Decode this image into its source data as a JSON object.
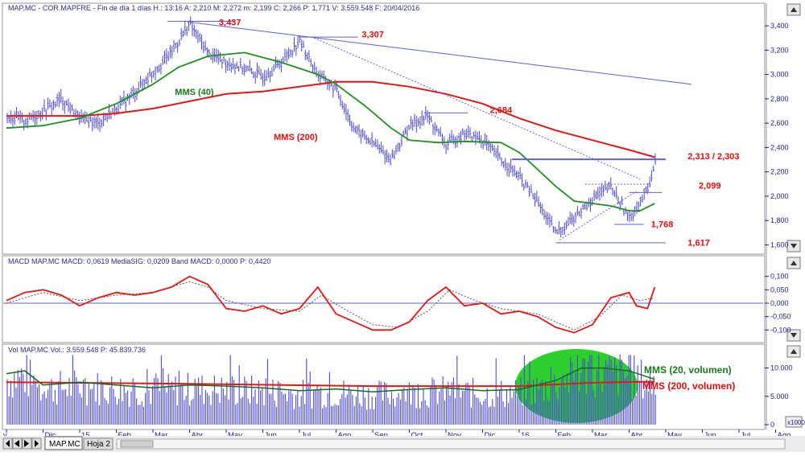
{
  "header": {
    "price": "MAP.MC - COR.MAPFRE - Fin de día 1 días H.: 13:16 A: 2,210 M: 2,272 m: 2,199 C: 2,266 P: 1,771 V: 3.559.548 F: 20/04/2016",
    "macd": "MACD  MAP.MC MACD: 0,0619 MediaSIG: 0,0209 Band  MACD: 0,0000  P: 0,4420",
    "vol": "Vol  MAP.MC Vol.: 3.559.548  P: 45.839.736"
  },
  "colors": {
    "price": "#4b4bd8",
    "mms40": "#1f8f1f",
    "mms200": "#e01818",
    "trend": "#6060e0",
    "axis": "#20208a",
    "highlight": "#22cc22"
  },
  "chart_data": [
    {
      "type": "line",
      "panel": "price",
      "y_ticks": [
        "3,400",
        "3,200",
        "3,000",
        "2,800",
        "2,600",
        "2,400",
        "2,200",
        "2,000",
        "1,800",
        "1,600"
      ],
      "ylim": [
        1.55,
        3.48
      ],
      "x_labels": [
        "Nov",
        "Dic",
        "15",
        "Feb",
        "Mar",
        "Abr",
        "May",
        "Jun",
        "Jul",
        "Ago",
        "Sep",
        "Oct",
        "Nov",
        "Dic",
        "16",
        "Feb",
        "Mar",
        "Abr",
        "May",
        "Jun",
        "Jul",
        "Ago"
      ],
      "x_labels_visible": [
        "v",
        "Dic",
        "15",
        "Feb",
        "Mar",
        "Abr",
        "May",
        "Jun",
        "Jul",
        "Ago",
        "Sep",
        "Oct",
        "Nov",
        "Dic",
        "16",
        "Feb",
        "Mar",
        "Abr",
        "May",
        "Jun",
        "Jul",
        "Ago"
      ],
      "price_path": [
        [
          0,
          2.66
        ],
        [
          0.5,
          2.62
        ],
        [
          1,
          2.7
        ],
        [
          1.5,
          2.8
        ],
        [
          2,
          2.64
        ],
        [
          2.5,
          2.6
        ],
        [
          3,
          2.72
        ],
        [
          3.5,
          2.85
        ],
        [
          4,
          3.02
        ],
        [
          4.5,
          3.18
        ],
        [
          5,
          3.42
        ],
        [
          5.5,
          3.18
        ],
        [
          6,
          3.1
        ],
        [
          6.5,
          3.05
        ],
        [
          7,
          2.98
        ],
        [
          7.5,
          3.1
        ],
        [
          8,
          3.28
        ],
        [
          8.5,
          3.0
        ],
        [
          9,
          2.88
        ],
        [
          9.5,
          2.55
        ],
        [
          10,
          2.44
        ],
        [
          10.5,
          2.3
        ],
        [
          11,
          2.58
        ],
        [
          11.5,
          2.66
        ],
        [
          12,
          2.42
        ],
        [
          12.5,
          2.52
        ],
        [
          13,
          2.46
        ],
        [
          13.5,
          2.3
        ],
        [
          14,
          2.16
        ],
        [
          14.5,
          1.95
        ],
        [
          15,
          1.7
        ],
        [
          15.5,
          1.82
        ],
        [
          16,
          1.98
        ],
        [
          16.5,
          2.08
        ],
        [
          17,
          1.82
        ],
        [
          17.5,
          2.05
        ],
        [
          17.7,
          2.27
        ]
      ],
      "series": [
        {
          "name": "MMS (40)",
          "points": [
            [
              0,
              2.56
            ],
            [
              1,
              2.58
            ],
            [
              2,
              2.64
            ],
            [
              3,
              2.76
            ],
            [
              4,
              2.92
            ],
            [
              4.7,
              3.06
            ],
            [
              5.5,
              3.15
            ],
            [
              6.5,
              3.18
            ],
            [
              7.5,
              3.1
            ],
            [
              8.5,
              3.0
            ],
            [
              9,
              2.92
            ],
            [
              9.8,
              2.74
            ],
            [
              10.5,
              2.56
            ],
            [
              11,
              2.46
            ],
            [
              11.8,
              2.44
            ],
            [
              12.5,
              2.45
            ],
            [
              13.5,
              2.44
            ],
            [
              14,
              2.36
            ],
            [
              14.5,
              2.22
            ],
            [
              15,
              2.08
            ],
            [
              15.5,
              1.96
            ],
            [
              16,
              1.94
            ],
            [
              16.5,
              1.92
            ],
            [
              17,
              1.88
            ],
            [
              17.3,
              1.88
            ],
            [
              17.7,
              1.94
            ]
          ]
        },
        {
          "name": "MMS (200)",
          "points": [
            [
              0,
              2.66
            ],
            [
              2,
              2.66
            ],
            [
              3,
              2.68
            ],
            [
              4,
              2.72
            ],
            [
              5,
              2.78
            ],
            [
              6,
              2.84
            ],
            [
              7,
              2.86
            ],
            [
              8,
              2.9
            ],
            [
              9,
              2.94
            ],
            [
              10,
              2.94
            ],
            [
              11,
              2.9
            ],
            [
              12,
              2.84
            ],
            [
              13,
              2.76
            ],
            [
              14,
              2.64
            ],
            [
              15,
              2.54
            ],
            [
              16,
              2.46
            ],
            [
              17,
              2.38
            ],
            [
              17.7,
              2.32
            ]
          ]
        }
      ],
      "trendlines": [
        {
          "from": [
            5,
            3.43
          ],
          "to": [
            18.7,
            2.92
          ],
          "style": "solid"
        },
        {
          "from": [
            8.4,
            3.3
          ],
          "to": [
            17.3,
            2.14
          ],
          "style": "dotted"
        },
        {
          "from": [
            15.1,
            1.64
          ],
          "to": [
            17.2,
            2.04
          ],
          "style": "dotted"
        }
      ],
      "levels": [
        {
          "value": 3.437,
          "from": 4.4,
          "to": 6.2
        },
        {
          "value": 3.307,
          "from": 8.0,
          "to": 9.6
        },
        {
          "value": 2.684,
          "from": 11.4,
          "to": 12.6
        },
        {
          "value": 2.303,
          "from": 13.8,
          "to": 18.0
        },
        {
          "value": 2.099,
          "from": 15.8,
          "to": 17.6,
          "style": "dotted"
        },
        {
          "value": 2.03,
          "from": 17.0,
          "to": 17.9
        },
        {
          "value": 1.768,
          "from": 16.6,
          "to": 17.4
        },
        {
          "value": 1.617,
          "from": 15.0,
          "to": 18.0
        }
      ],
      "annotations": [
        {
          "text": "3,437",
          "x": 5.8,
          "y": 3.43,
          "color": "red"
        },
        {
          "text": "3,307",
          "x": 9.7,
          "y": 3.33,
          "color": "red"
        },
        {
          "text": "2,684",
          "x": 13.2,
          "y": 2.71,
          "color": "red"
        },
        {
          "text": "2,313 / 2,303",
          "x": 18.6,
          "y": 2.33,
          "color": "red"
        },
        {
          "text": "2,099",
          "x": 18.9,
          "y": 2.09,
          "color": "red"
        },
        {
          "text": "1,768",
          "x": 17.6,
          "y": 1.77,
          "color": "red"
        },
        {
          "text": "1,617",
          "x": 18.6,
          "y": 1.62,
          "color": "red"
        },
        {
          "text": "MMS (40)",
          "x": 4.6,
          "y": 2.86,
          "color": "green"
        },
        {
          "text": "MMS (200)",
          "x": 7.3,
          "y": 2.49,
          "color": "red"
        }
      ]
    },
    {
      "type": "line",
      "panel": "macd",
      "y_ticks": [
        "0,100",
        "0,050",
        "0,000",
        "-0,050",
        "-0,100"
      ],
      "ylim": [
        -0.135,
        0.135
      ],
      "series": [
        {
          "name": "MACD",
          "points": [
            [
              0,
              0.01
            ],
            [
              0.5,
              0.04
            ],
            [
              1,
              0.05
            ],
            [
              1.5,
              0.03
            ],
            [
              2,
              -0.01
            ],
            [
              2.5,
              0.02
            ],
            [
              3,
              0.04
            ],
            [
              3.5,
              0.03
            ],
            [
              4,
              0.04
            ],
            [
              4.5,
              0.06
            ],
            [
              5,
              0.1
            ],
            [
              5.5,
              0.07
            ],
            [
              6,
              -0.02
            ],
            [
              6.5,
              -0.03
            ],
            [
              7,
              -0.01
            ],
            [
              7.5,
              -0.04
            ],
            [
              8,
              -0.02
            ],
            [
              8.5,
              0.06
            ],
            [
              9,
              -0.04
            ],
            [
              9.5,
              -0.07
            ],
            [
              10,
              -0.1
            ],
            [
              10.5,
              -0.1
            ],
            [
              11,
              -0.07
            ],
            [
              11.5,
              0.01
            ],
            [
              12,
              0.06
            ],
            [
              12.5,
              -0.01
            ],
            [
              13,
              0.0
            ],
            [
              13.5,
              -0.04
            ],
            [
              14,
              -0.03
            ],
            [
              14.5,
              -0.05
            ],
            [
              15,
              -0.09
            ],
            [
              15.5,
              -0.11
            ],
            [
              16,
              -0.08
            ],
            [
              16.5,
              0.02
            ],
            [
              17,
              0.04
            ],
            [
              17.2,
              -0.01
            ],
            [
              17.5,
              -0.02
            ],
            [
              17.7,
              0.06
            ]
          ]
        },
        {
          "name": "MediaSIG",
          "style": "dotted",
          "points": [
            [
              0,
              0.0
            ],
            [
              1,
              0.04
            ],
            [
              2,
              0.01
            ],
            [
              3,
              0.03
            ],
            [
              4,
              0.04
            ],
            [
              5,
              0.08
            ],
            [
              5.5,
              0.06
            ],
            [
              6,
              0.01
            ],
            [
              7,
              -0.02
            ],
            [
              8,
              -0.03
            ],
            [
              8.6,
              0.03
            ],
            [
              9.2,
              -0.02
            ],
            [
              10,
              -0.08
            ],
            [
              10.7,
              -0.09
            ],
            [
              11.5,
              -0.03
            ],
            [
              12.1,
              0.05
            ],
            [
              12.8,
              0.01
            ],
            [
              13.5,
              -0.02
            ],
            [
              14.5,
              -0.04
            ],
            [
              15.5,
              -0.1
            ],
            [
              16.2,
              -0.05
            ],
            [
              16.8,
              0.03
            ],
            [
              17.3,
              0.01
            ],
            [
              17.7,
              0.02
            ]
          ]
        }
      ]
    },
    {
      "type": "bar",
      "panel": "volume",
      "y_ticks": [
        "10.000",
        "5.000",
        "0"
      ],
      "ylim": [
        0,
        12.5
      ],
      "axis_unit": "x1000",
      "bars_summary": "daily volume bars, baseline about 3-9 thousand with spikes to 12",
      "series": [
        {
          "name": "MMS (20, volumen)",
          "points": [
            [
              0,
              9.0
            ],
            [
              0.5,
              9.5
            ],
            [
              1,
              7.0
            ],
            [
              2,
              7.5
            ],
            [
              3,
              7.0
            ],
            [
              4,
              6.5
            ],
            [
              5,
              7.0
            ],
            [
              6,
              6.8
            ],
            [
              7,
              6.5
            ],
            [
              8,
              6.0
            ],
            [
              9,
              6.3
            ],
            [
              10,
              5.8
            ],
            [
              11,
              6.2
            ],
            [
              12,
              6.5
            ],
            [
              13,
              6.0
            ],
            [
              14,
              6.2
            ],
            [
              15,
              7.8
            ],
            [
              15.7,
              10.0
            ],
            [
              16.3,
              10.0
            ],
            [
              17,
              9.5
            ],
            [
              17.7,
              8.0
            ]
          ]
        },
        {
          "name": "MMS (200, volumen)",
          "points": [
            [
              0,
              7.5
            ],
            [
              5,
              7.2
            ],
            [
              10,
              6.8
            ],
            [
              14,
              6.8
            ],
            [
              16,
              7.4
            ],
            [
              17.7,
              7.6
            ]
          ]
        }
      ],
      "annotations": [
        {
          "text": "MMS (20, volumen)",
          "color": "green"
        },
        {
          "text": "MMS (200, volumen)",
          "color": "red"
        }
      ]
    }
  ],
  "tabs": {
    "active": "MAP.MC",
    "other": "Hoja 2"
  }
}
